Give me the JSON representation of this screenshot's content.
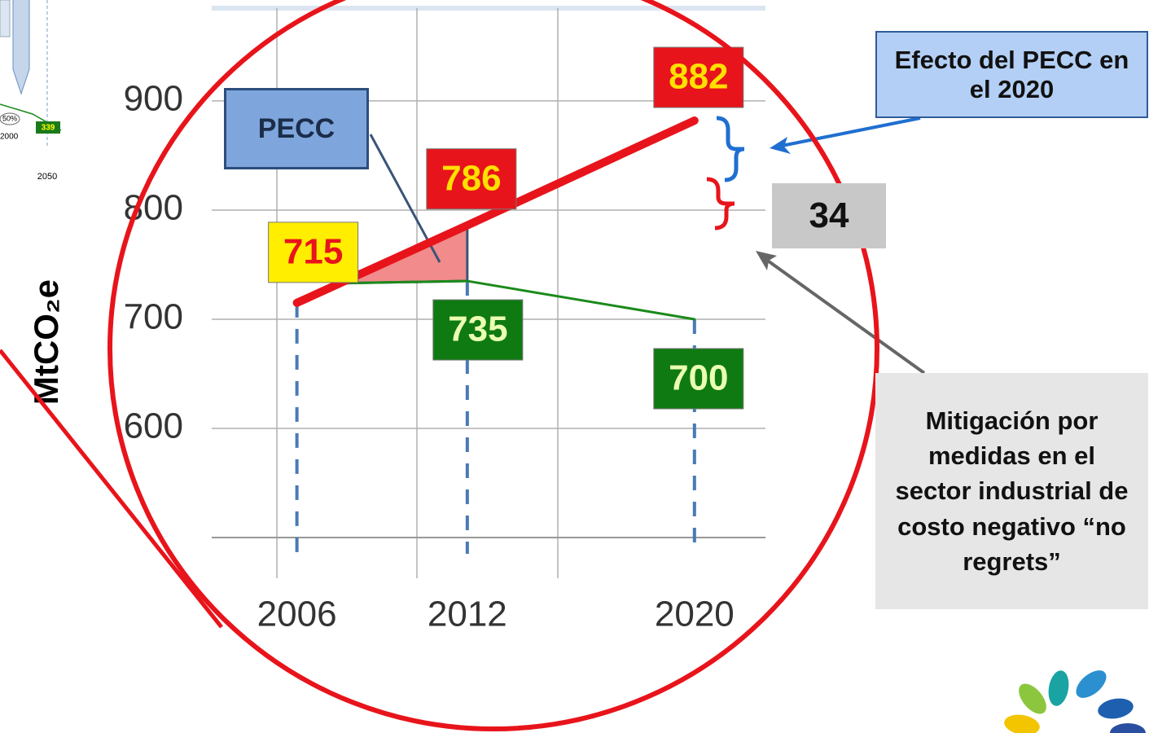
{
  "chart_data": {
    "type": "line",
    "y_label": "MtCO₂e",
    "x": [
      2006,
      2012,
      2020
    ],
    "xticks": [
      2006,
      2012,
      2020
    ],
    "xlim": [
      2003,
      2022.5
    ],
    "ylim": [
      500,
      985
    ],
    "yticks": [
      600,
      700,
      800,
      900
    ],
    "grid": true,
    "series": [
      {
        "color": "#e8141b",
        "values": [
          715,
          786,
          882
        ]
      },
      {
        "color": "#1a8a1a",
        "values": [
          null,
          735,
          700
        ]
      }
    ],
    "annotations": {
      "pecc": "PECC",
      "effect": "Efecto del PECC en el 2020",
      "gap": "34",
      "mitigation": "Mitigación por medidas en el sector industrial de costo negativo “no regrets”"
    }
  },
  "thumbnail": {
    "percent": "50%",
    "year_start": "2000",
    "value": "339",
    "year_end": "2050"
  }
}
